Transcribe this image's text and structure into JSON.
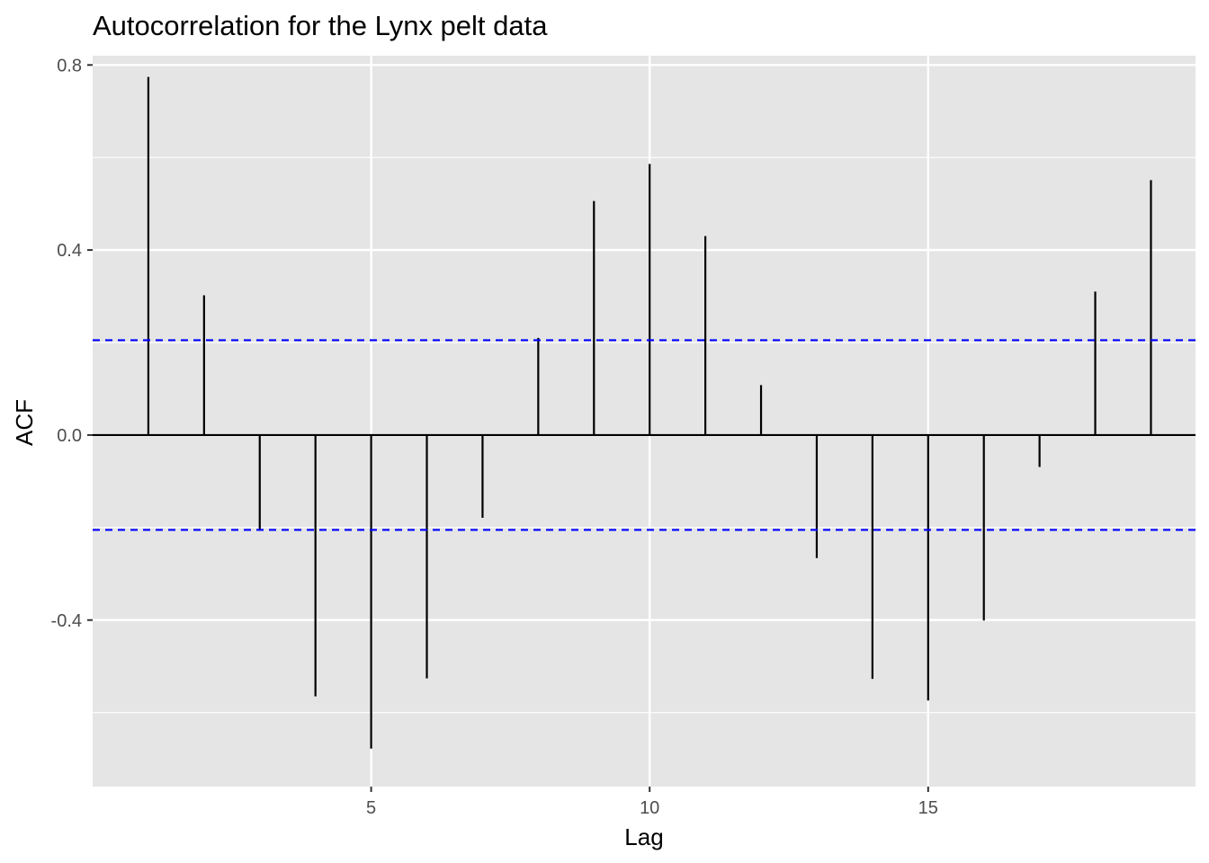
{
  "chart_data": {
    "type": "bar",
    "title": "Autocorrelation for the Lynx pelt data",
    "xlabel": "Lag",
    "ylabel": "ACF",
    "x": [
      1,
      2,
      3,
      4,
      5,
      6,
      7,
      8,
      9,
      10,
      11,
      12,
      13,
      14,
      15,
      16,
      17,
      18,
      19
    ],
    "values": [
      0.774,
      0.302,
      -0.204,
      -0.565,
      -0.678,
      -0.526,
      -0.179,
      0.21,
      0.506,
      0.586,
      0.43,
      0.108,
      -0.266,
      -0.527,
      -0.574,
      -0.401,
      -0.069,
      0.31,
      0.551
    ],
    "confidence_bound": 0.205,
    "xlim": [
      0,
      19.8
    ],
    "ylim": [
      -0.76,
      0.82
    ],
    "x_ticks": [
      5,
      10,
      15
    ],
    "y_ticks": [
      -0.4,
      0.0,
      0.4,
      0.8
    ],
    "x_tick_labels": [
      "5",
      "10",
      "15"
    ],
    "y_tick_labels": [
      "-0.4",
      "0.0",
      "0.4",
      "0.8"
    ],
    "grid": true,
    "colors": {
      "panel": "#e5e5e5",
      "grid": "#ffffff",
      "spike": "#000000",
      "confidence_line": "#0000ff"
    }
  }
}
